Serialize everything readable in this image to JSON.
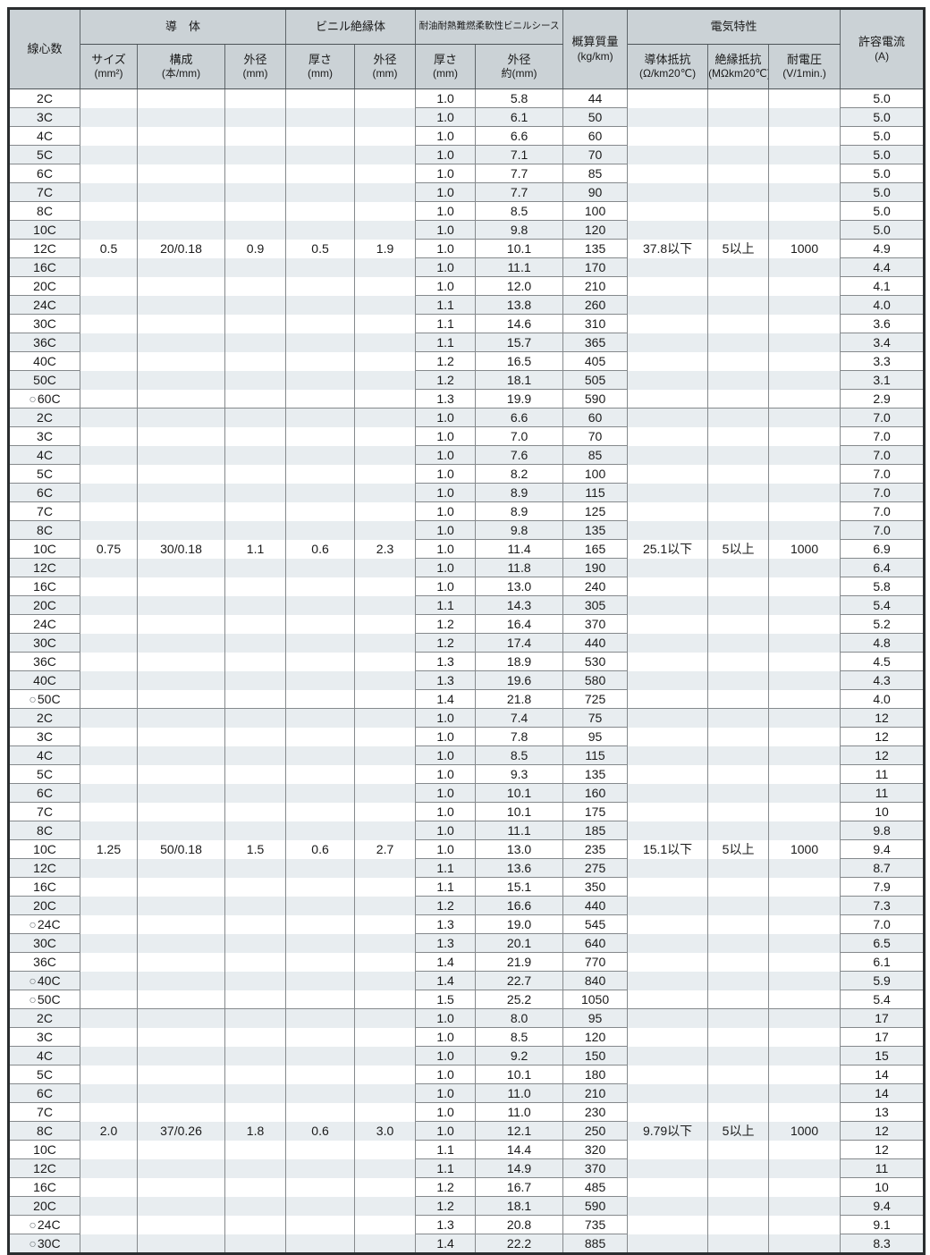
{
  "table": {
    "circle_mark": "○",
    "headers": {
      "cores": {
        "label": "線心数"
      },
      "conductor_group": "導　体",
      "insulation_group": "ビニル絶縁体",
      "sheath_group": "耐油耐熱難燃柔軟性ビニルシース",
      "mass": {
        "label": "概算質量",
        "unit": "(kg/km)"
      },
      "electrical_group": "電気特性",
      "current": {
        "label": "許容電流",
        "unit": "(A)"
      },
      "size": {
        "label": "サイズ",
        "unit": "(mm²)"
      },
      "structure": {
        "label": "構成",
        "unit": "(本/mm)"
      },
      "conductor_od": {
        "label": "外径",
        "unit": "(mm)"
      },
      "insulation_thickness": {
        "label": "厚さ",
        "unit": "(mm)"
      },
      "insulation_od": {
        "label": "外径",
        "unit": "(mm)"
      },
      "sheath_thickness": {
        "label": "厚さ",
        "unit": "(mm)"
      },
      "sheath_od": {
        "label": "外径",
        "unit": "約(mm)"
      },
      "conductor_resistance": {
        "label": "導体抵抗",
        "unit": "(Ω/km20℃)"
      },
      "insulation_resistance": {
        "label": "絶縁抵抗",
        "unit": "(MΩkm20℃)"
      },
      "voltage": {
        "label": "耐電圧",
        "unit": "(V/1min.)"
      }
    },
    "groups": [
      {
        "size": "0.5",
        "structure": "20/0.18",
        "conductor_od": "0.9",
        "insulation_thickness": "0.5",
        "insulation_od": "1.9",
        "conductor_resistance": "37.8以下",
        "insulation_resistance": "5以上",
        "voltage": "1000",
        "value_row": 8,
        "rows": [
          {
            "label": "2C",
            "circle": false,
            "sheath_t": "1.0",
            "sheath_od": "5.8",
            "mass": "44",
            "current": "5.0"
          },
          {
            "label": "3C",
            "circle": false,
            "sheath_t": "1.0",
            "sheath_od": "6.1",
            "mass": "50",
            "current": "5.0"
          },
          {
            "label": "4C",
            "circle": false,
            "sheath_t": "1.0",
            "sheath_od": "6.6",
            "mass": "60",
            "current": "5.0"
          },
          {
            "label": "5C",
            "circle": false,
            "sheath_t": "1.0",
            "sheath_od": "7.1",
            "mass": "70",
            "current": "5.0"
          },
          {
            "label": "6C",
            "circle": false,
            "sheath_t": "1.0",
            "sheath_od": "7.7",
            "mass": "85",
            "current": "5.0"
          },
          {
            "label": "7C",
            "circle": false,
            "sheath_t": "1.0",
            "sheath_od": "7.7",
            "mass": "90",
            "current": "5.0"
          },
          {
            "label": "8C",
            "circle": false,
            "sheath_t": "1.0",
            "sheath_od": "8.5",
            "mass": "100",
            "current": "5.0"
          },
          {
            "label": "10C",
            "circle": false,
            "sheath_t": "1.0",
            "sheath_od": "9.8",
            "mass": "120",
            "current": "5.0"
          },
          {
            "label": "12C",
            "circle": false,
            "sheath_t": "1.0",
            "sheath_od": "10.1",
            "mass": "135",
            "current": "4.9"
          },
          {
            "label": "16C",
            "circle": false,
            "sheath_t": "1.0",
            "sheath_od": "11.1",
            "mass": "170",
            "current": "4.4"
          },
          {
            "label": "20C",
            "circle": false,
            "sheath_t": "1.0",
            "sheath_od": "12.0",
            "mass": "210",
            "current": "4.1"
          },
          {
            "label": "24C",
            "circle": false,
            "sheath_t": "1.1",
            "sheath_od": "13.8",
            "mass": "260",
            "current": "4.0"
          },
          {
            "label": "30C",
            "circle": false,
            "sheath_t": "1.1",
            "sheath_od": "14.6",
            "mass": "310",
            "current": "3.6"
          },
          {
            "label": "36C",
            "circle": false,
            "sheath_t": "1.1",
            "sheath_od": "15.7",
            "mass": "365",
            "current": "3.4"
          },
          {
            "label": "40C",
            "circle": false,
            "sheath_t": "1.2",
            "sheath_od": "16.5",
            "mass": "405",
            "current": "3.3"
          },
          {
            "label": "50C",
            "circle": false,
            "sheath_t": "1.2",
            "sheath_od": "18.1",
            "mass": "505",
            "current": "3.1"
          },
          {
            "label": "60C",
            "circle": true,
            "sheath_t": "1.3",
            "sheath_od": "19.9",
            "mass": "590",
            "current": "2.9"
          }
        ]
      },
      {
        "size": "0.75",
        "structure": "30/0.18",
        "conductor_od": "1.1",
        "insulation_thickness": "0.6",
        "insulation_od": "2.3",
        "conductor_resistance": "25.1以下",
        "insulation_resistance": "5以上",
        "voltage": "1000",
        "value_row": 7,
        "rows": [
          {
            "label": "2C",
            "circle": false,
            "sheath_t": "1.0",
            "sheath_od": "6.6",
            "mass": "60",
            "current": "7.0"
          },
          {
            "label": "3C",
            "circle": false,
            "sheath_t": "1.0",
            "sheath_od": "7.0",
            "mass": "70",
            "current": "7.0"
          },
          {
            "label": "4C",
            "circle": false,
            "sheath_t": "1.0",
            "sheath_od": "7.6",
            "mass": "85",
            "current": "7.0"
          },
          {
            "label": "5C",
            "circle": false,
            "sheath_t": "1.0",
            "sheath_od": "8.2",
            "mass": "100",
            "current": "7.0"
          },
          {
            "label": "6C",
            "circle": false,
            "sheath_t": "1.0",
            "sheath_od": "8.9",
            "mass": "115",
            "current": "7.0"
          },
          {
            "label": "7C",
            "circle": false,
            "sheath_t": "1.0",
            "sheath_od": "8.9",
            "mass": "125",
            "current": "7.0"
          },
          {
            "label": "8C",
            "circle": false,
            "sheath_t": "1.0",
            "sheath_od": "9.8",
            "mass": "135",
            "current": "7.0"
          },
          {
            "label": "10C",
            "circle": false,
            "sheath_t": "1.0",
            "sheath_od": "11.4",
            "mass": "165",
            "current": "6.9"
          },
          {
            "label": "12C",
            "circle": false,
            "sheath_t": "1.0",
            "sheath_od": "11.8",
            "mass": "190",
            "current": "6.4"
          },
          {
            "label": "16C",
            "circle": false,
            "sheath_t": "1.0",
            "sheath_od": "13.0",
            "mass": "240",
            "current": "5.8"
          },
          {
            "label": "20C",
            "circle": false,
            "sheath_t": "1.1",
            "sheath_od": "14.3",
            "mass": "305",
            "current": "5.4"
          },
          {
            "label": "24C",
            "circle": false,
            "sheath_t": "1.2",
            "sheath_od": "16.4",
            "mass": "370",
            "current": "5.2"
          },
          {
            "label": "30C",
            "circle": false,
            "sheath_t": "1.2",
            "sheath_od": "17.4",
            "mass": "440",
            "current": "4.8"
          },
          {
            "label": "36C",
            "circle": false,
            "sheath_t": "1.3",
            "sheath_od": "18.9",
            "mass": "530",
            "current": "4.5"
          },
          {
            "label": "40C",
            "circle": false,
            "sheath_t": "1.3",
            "sheath_od": "19.6",
            "mass": "580",
            "current": "4.3"
          },
          {
            "label": "50C",
            "circle": true,
            "sheath_t": "1.4",
            "sheath_od": "21.8",
            "mass": "725",
            "current": "4.0"
          }
        ]
      },
      {
        "size": "1.25",
        "structure": "50/0.18",
        "conductor_od": "1.5",
        "insulation_thickness": "0.6",
        "insulation_od": "2.7",
        "conductor_resistance": "15.1以下",
        "insulation_resistance": "5以上",
        "voltage": "1000",
        "value_row": 7,
        "rows": [
          {
            "label": "2C",
            "circle": false,
            "sheath_t": "1.0",
            "sheath_od": "7.4",
            "mass": "75",
            "current": "12"
          },
          {
            "label": "3C",
            "circle": false,
            "sheath_t": "1.0",
            "sheath_od": "7.8",
            "mass": "95",
            "current": "12"
          },
          {
            "label": "4C",
            "circle": false,
            "sheath_t": "1.0",
            "sheath_od": "8.5",
            "mass": "115",
            "current": "12"
          },
          {
            "label": "5C",
            "circle": false,
            "sheath_t": "1.0",
            "sheath_od": "9.3",
            "mass": "135",
            "current": "11"
          },
          {
            "label": "6C",
            "circle": false,
            "sheath_t": "1.0",
            "sheath_od": "10.1",
            "mass": "160",
            "current": "11"
          },
          {
            "label": "7C",
            "circle": false,
            "sheath_t": "1.0",
            "sheath_od": "10.1",
            "mass": "175",
            "current": "10"
          },
          {
            "label": "8C",
            "circle": false,
            "sheath_t": "1.0",
            "sheath_od": "11.1",
            "mass": "185",
            "current": "9.8"
          },
          {
            "label": "10C",
            "circle": false,
            "sheath_t": "1.0",
            "sheath_od": "13.0",
            "mass": "235",
            "current": "9.4"
          },
          {
            "label": "12C",
            "circle": false,
            "sheath_t": "1.1",
            "sheath_od": "13.6",
            "mass": "275",
            "current": "8.7"
          },
          {
            "label": "16C",
            "circle": false,
            "sheath_t": "1.1",
            "sheath_od": "15.1",
            "mass": "350",
            "current": "7.9"
          },
          {
            "label": "20C",
            "circle": false,
            "sheath_t": "1.2",
            "sheath_od": "16.6",
            "mass": "440",
            "current": "7.3"
          },
          {
            "label": "24C",
            "circle": true,
            "sheath_t": "1.3",
            "sheath_od": "19.0",
            "mass": "545",
            "current": "7.0"
          },
          {
            "label": "30C",
            "circle": false,
            "sheath_t": "1.3",
            "sheath_od": "20.1",
            "mass": "640",
            "current": "6.5"
          },
          {
            "label": "36C",
            "circle": false,
            "sheath_t": "1.4",
            "sheath_od": "21.9",
            "mass": "770",
            "current": "6.1"
          },
          {
            "label": "40C",
            "circle": true,
            "sheath_t": "1.4",
            "sheath_od": "22.7",
            "mass": "840",
            "current": "5.9"
          },
          {
            "label": "50C",
            "circle": true,
            "sheath_t": "1.5",
            "sheath_od": "25.2",
            "mass": "1050",
            "current": "5.4"
          }
        ]
      },
      {
        "size": "2.0",
        "structure": "37/0.26",
        "conductor_od": "1.8",
        "insulation_thickness": "0.6",
        "insulation_od": "3.0",
        "conductor_resistance": "9.79以下",
        "insulation_resistance": "5以上",
        "voltage": "1000",
        "value_row": 6,
        "rows": [
          {
            "label": "2C",
            "circle": false,
            "sheath_t": "1.0",
            "sheath_od": "8.0",
            "mass": "95",
            "current": "17"
          },
          {
            "label": "3C",
            "circle": false,
            "sheath_t": "1.0",
            "sheath_od": "8.5",
            "mass": "120",
            "current": "17"
          },
          {
            "label": "4C",
            "circle": false,
            "sheath_t": "1.0",
            "sheath_od": "9.2",
            "mass": "150",
            "current": "15"
          },
          {
            "label": "5C",
            "circle": false,
            "sheath_t": "1.0",
            "sheath_od": "10.1",
            "mass": "180",
            "current": "14"
          },
          {
            "label": "6C",
            "circle": false,
            "sheath_t": "1.0",
            "sheath_od": "11.0",
            "mass": "210",
            "current": "14"
          },
          {
            "label": "7C",
            "circle": false,
            "sheath_t": "1.0",
            "sheath_od": "11.0",
            "mass": "230",
            "current": "13"
          },
          {
            "label": "8C",
            "circle": false,
            "sheath_t": "1.0",
            "sheath_od": "12.1",
            "mass": "250",
            "current": "12"
          },
          {
            "label": "10C",
            "circle": false,
            "sheath_t": "1.1",
            "sheath_od": "14.4",
            "mass": "320",
            "current": "12"
          },
          {
            "label": "12C",
            "circle": false,
            "sheath_t": "1.1",
            "sheath_od": "14.9",
            "mass": "370",
            "current": "11"
          },
          {
            "label": "16C",
            "circle": false,
            "sheath_t": "1.2",
            "sheath_od": "16.7",
            "mass": "485",
            "current": "10"
          },
          {
            "label": "20C",
            "circle": false,
            "sheath_t": "1.2",
            "sheath_od": "18.1",
            "mass": "590",
            "current": "9.4"
          },
          {
            "label": "24C",
            "circle": true,
            "sheath_t": "1.3",
            "sheath_od": "20.8",
            "mass": "735",
            "current": "9.1"
          },
          {
            "label": "30C",
            "circle": true,
            "sheath_t": "1.4",
            "sheath_od": "22.2",
            "mass": "885",
            "current": "8.3"
          }
        ]
      }
    ],
    "colors": {
      "header_bg": "#cbd2d6",
      "stripe_bg": "#e8edf0",
      "grid_line": "#85898c",
      "outer_border": "#2a2d2f"
    }
  }
}
